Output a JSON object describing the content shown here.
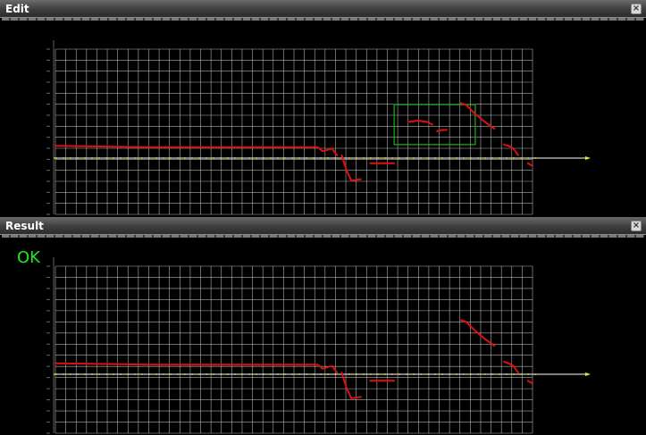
{
  "panels": {
    "edit": {
      "title": "Edit",
      "close_glyph": "×"
    },
    "result": {
      "title": "Result",
      "close_glyph": "×",
      "status": "OK"
    }
  },
  "colors": {
    "background": "#000000",
    "grid": "#cfcfcf",
    "axis": "#ffffff",
    "baseline": "#e6e63c",
    "trace": "#e01010",
    "selection": "#19b419",
    "status_ok": "#1ee81e"
  },
  "icons": {
    "close": "close-icon"
  },
  "chart_data": [
    {
      "panel": "edit",
      "type": "line",
      "x_range": [
        0,
        100
      ],
      "y_range": [
        -10,
        100
      ],
      "grid": true,
      "selection_box": {
        "x": [
          71,
          88
        ],
        "y": [
          29,
          59
        ]
      },
      "series": [
        {
          "points": [
            [
              0,
              28
            ],
            [
              20,
              27
            ],
            [
              40,
              27
            ],
            [
              55,
              27
            ],
            [
              56,
              24
            ],
            [
              58,
              26
            ],
            [
              59,
              21
            ]
          ]
        },
        {
          "points": [
            [
              60,
              21
            ],
            [
              61,
              10
            ],
            [
              62,
              2
            ],
            [
              64,
              3
            ]
          ]
        },
        {
          "points": [
            [
              66,
              15
            ],
            [
              71,
              15
            ]
          ]
        },
        {
          "points": [
            [
              74,
              46
            ],
            [
              76,
              47
            ],
            [
              78,
              46
            ],
            [
              79,
              44
            ]
          ]
        },
        {
          "points": [
            [
              80,
              39
            ],
            [
              81,
              40
            ],
            [
              82,
              40
            ]
          ]
        },
        {
          "points": [
            [
              85,
              60
            ],
            [
              86,
              59
            ],
            [
              88,
              52
            ],
            [
              90,
              46
            ],
            [
              92,
              41
            ]
          ]
        },
        {
          "points": [
            [
              94,
              29
            ],
            [
              95,
              28
            ],
            [
              96,
              26
            ],
            [
              97,
              21
            ]
          ]
        },
        {
          "points": [
            [
              99,
              15
            ],
            [
              99.5,
              14
            ],
            [
              100,
              13
            ]
          ]
        }
      ]
    },
    {
      "panel": "result",
      "type": "line",
      "x_range": [
        0,
        100
      ],
      "y_range": [
        -10,
        100
      ],
      "grid": true,
      "series": [
        {
          "points": [
            [
              0,
              28
            ],
            [
              20,
              27
            ],
            [
              40,
              27
            ],
            [
              55,
              27
            ],
            [
              56,
              24
            ],
            [
              58,
              26
            ],
            [
              59,
              21
            ]
          ]
        },
        {
          "points": [
            [
              60,
              21
            ],
            [
              61,
              10
            ],
            [
              62,
              2
            ],
            [
              64,
              3
            ]
          ]
        },
        {
          "points": [
            [
              66,
              15
            ],
            [
              71,
              15
            ]
          ]
        },
        {
          "points": [
            [
              85,
              60
            ],
            [
              86,
              59
            ],
            [
              88,
              52
            ],
            [
              90,
              46
            ],
            [
              92,
              41
            ]
          ]
        },
        {
          "points": [
            [
              94,
              29
            ],
            [
              95,
              28
            ],
            [
              96,
              26
            ],
            [
              97,
              21
            ]
          ]
        },
        {
          "points": [
            [
              99,
              15
            ],
            [
              99.5,
              14
            ],
            [
              100,
              13
            ]
          ]
        }
      ]
    }
  ]
}
